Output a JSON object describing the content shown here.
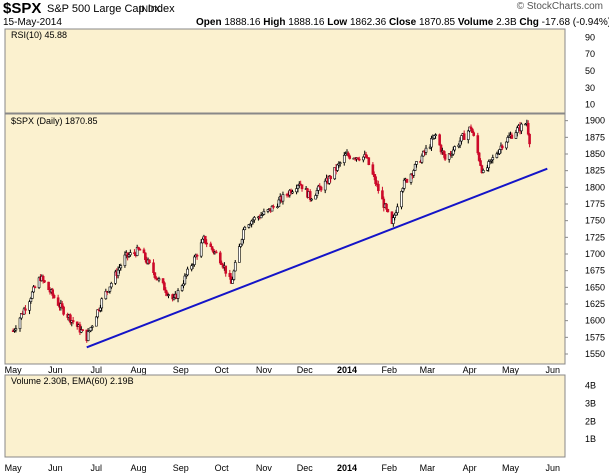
{
  "header": {
    "symbol": "$SPX",
    "name": "S&P 500 Large Cap Index",
    "exchange": "INDX",
    "date": "15-May-2014",
    "credit": "© StockCharts.com",
    "open_label": "Open",
    "open": "1888.16",
    "high_label": "High",
    "high": "1888.16",
    "low_label": "Low",
    "low": "1862.36",
    "close_label": "Close",
    "close": "1870.85",
    "volume_label": "Volume",
    "volume": "2.3B",
    "chg_label": "Chg",
    "chg": "-17.68 (-0.94%)"
  },
  "rsi_panel": {
    "label": "RSI(10) 45.88",
    "ticks": [
      "90",
      "70",
      "50",
      "30",
      "10"
    ]
  },
  "price_panel": {
    "label": "$SPX (Daily) 1870.85",
    "ticks": [
      "1900",
      "1875",
      "1850",
      "1825",
      "1800",
      "1775",
      "1750",
      "1725",
      "1700",
      "1675",
      "1650",
      "1625",
      "1600",
      "1575",
      "1550"
    ]
  },
  "volume_panel": {
    "label": "Volume 2.30B, EMA(60) 2.19B",
    "ticks": [
      "4B",
      "3B",
      "2B",
      "1B"
    ]
  },
  "x_labels": [
    "May",
    "Jun",
    "Jul",
    "Aug",
    "Sep",
    "Oct",
    "Nov",
    "Dec",
    "2014",
    "Feb",
    "Mar",
    "Apr",
    "May",
    "Jun"
  ],
  "colors": {
    "background": "#fbf1cf",
    "bar_up": "#000000",
    "bar_down": "#cc0a2a",
    "trendline": "#1414c8",
    "frame": "#888888"
  },
  "chart_data": {
    "type": "line",
    "title": "$SPX (Daily) 1870.85",
    "series": [
      {
        "name": "$SPX (Daily)",
        "x": [
          "2013-05-01",
          "2013-05-21",
          "2013-06-05",
          "2013-06-24",
          "2013-07-05",
          "2013-07-22",
          "2013-08-02",
          "2013-08-15",
          "2013-08-27",
          "2013-09-18",
          "2013-10-01",
          "2013-10-08",
          "2013-10-18",
          "2013-11-05",
          "2013-11-27",
          "2013-12-05",
          "2013-12-18",
          "2013-12-31",
          "2014-01-15",
          "2014-02-03",
          "2014-02-10",
          "2014-02-20",
          "2014-03-07",
          "2014-03-14",
          "2014-04-02",
          "2014-04-11",
          "2014-04-25",
          "2014-05-05",
          "2014-05-13",
          "2014-05-15"
        ],
        "values": [
          1585,
          1665,
          1620,
          1575,
          1630,
          1695,
          1706,
          1663,
          1630,
          1722,
          1690,
          1655,
          1745,
          1765,
          1808,
          1785,
          1810,
          1848,
          1845,
          1742,
          1800,
          1830,
          1878,
          1842,
          1890,
          1820,
          1865,
          1885,
          1897,
          1871
        ]
      }
    ],
    "trendline": {
      "x": [
        "2013-06-24",
        "2014-05-28"
      ],
      "values": [
        1560,
        1828
      ]
    },
    "ylim": [
      1535,
      1910
    ],
    "xlim": [
      "2013-04-25",
      "2014-06-10"
    ]
  }
}
